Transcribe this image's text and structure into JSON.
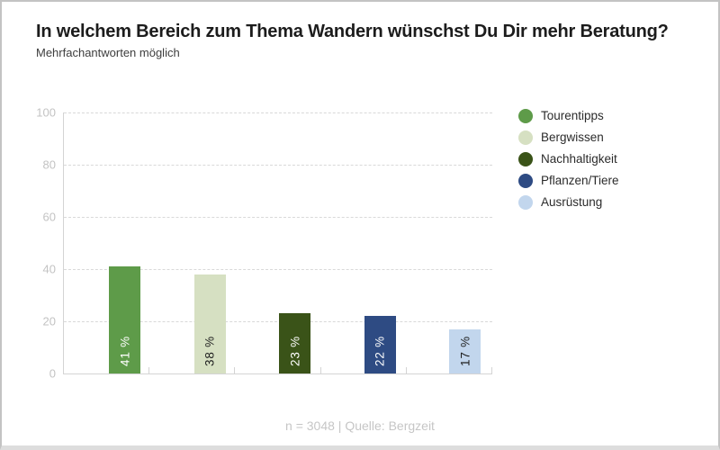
{
  "header": {
    "title": "In welchem Bereich zum Thema Wandern wünschst Du Dir mehr Beratung?",
    "subtitle": "Mehrfachantworten möglich"
  },
  "footer": {
    "text": "n = 3048 | Quelle: Bergzeit"
  },
  "chart_data": {
    "type": "bar",
    "title": "In welchem Bereich zum Thema Wandern wünschst Du Dir mehr Beratung?",
    "subtitle": "Mehrfachantworten möglich",
    "categories": [
      "Tourentipps",
      "Bergwissen",
      "Nachhaltigkeit",
      "Pflanzen/Tiere",
      "Ausrüstung"
    ],
    "values": [
      41,
      38,
      23,
      22,
      17
    ],
    "value_labels": [
      "41 %",
      "38 %",
      "23 %",
      "22 %",
      "17 %"
    ],
    "bar_colors": [
      "#5e9b49",
      "#d6e0c2",
      "#3a5318",
      "#2e4b83",
      "#c2d6ed"
    ],
    "value_label_colors": [
      "#ffffff",
      "#1f1f1f",
      "#ffffff",
      "#ffffff",
      "#1f1f1f"
    ],
    "xlabel": "",
    "ylabel": "",
    "ylim": [
      0,
      100
    ],
    "yticks": [
      0,
      20,
      40,
      60,
      80,
      100
    ],
    "grid": "horizontal-dashed",
    "legend_position": "right",
    "source_note": "n = 3048 | Quelle: Bergzeit"
  }
}
